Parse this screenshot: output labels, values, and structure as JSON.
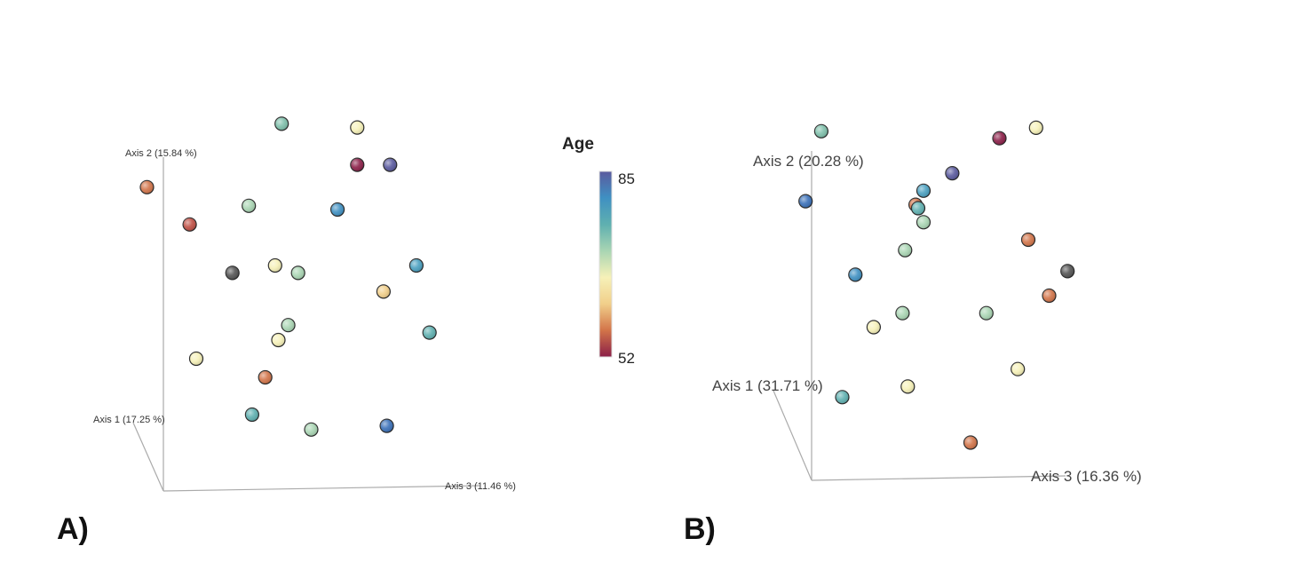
{
  "chart_data": [
    {
      "panel": "A)",
      "type": "scatter",
      "projection": "3d",
      "axes": {
        "axis1": "Axis 1 (17.25 %)",
        "axis2": "Axis 2 (15.84 %)",
        "axis3": "Axis 3 (11.46 %)"
      },
      "color_variable": "Age",
      "points": [
        {
          "axis3": 0.36,
          "axis2": 0.93,
          "axis1": 0.0,
          "color": "#7fc0ab"
        },
        {
          "axis3": 0.59,
          "axis2": 0.92,
          "axis1": 0.0,
          "color": "#f6f1b8"
        },
        {
          "axis3": -0.05,
          "axis2": 0.76,
          "axis1": 0.0,
          "color": "#d27449"
        },
        {
          "axis3": 0.59,
          "axis2": 0.82,
          "axis1": 0.0,
          "color": "#8b1f48"
        },
        {
          "axis3": 0.69,
          "axis2": 0.82,
          "axis1": 0.0,
          "color": "#5a5a9e"
        },
        {
          "axis3": 0.26,
          "axis2": 0.71,
          "axis1": 0.0,
          "color": "#a9d5b3"
        },
        {
          "axis3": 0.53,
          "axis2": 0.7,
          "axis1": 0.0,
          "color": "#3f90c2"
        },
        {
          "axis3": 0.08,
          "axis2": 0.66,
          "axis1": 0.0,
          "color": "#bf4f44"
        },
        {
          "axis3": 0.34,
          "axis2": 0.55,
          "axis1": 0.0,
          "color": "#f6f1b8"
        },
        {
          "axis3": 0.21,
          "axis2": 0.53,
          "axis1": 0.0,
          "color": "#545454"
        },
        {
          "axis3": 0.41,
          "axis2": 0.53,
          "axis1": 0.0,
          "color": "#a9d5b3"
        },
        {
          "axis3": 0.77,
          "axis2": 0.55,
          "axis1": 0.0,
          "color": "#4aa0c0"
        },
        {
          "axis3": 0.67,
          "axis2": 0.48,
          "axis1": 0.0,
          "color": "#f1cf8a"
        },
        {
          "axis3": 0.38,
          "axis2": 0.39,
          "axis1": 0.0,
          "color": "#a9d5b3"
        },
        {
          "axis3": 0.35,
          "axis2": 0.35,
          "axis1": 0.0,
          "color": "#f6f1b8"
        },
        {
          "axis3": 0.81,
          "axis2": 0.37,
          "axis1": 0.0,
          "color": "#5fb0b0"
        },
        {
          "axis3": 0.1,
          "axis2": 0.3,
          "axis1": 0.0,
          "color": "#f6f1b8"
        },
        {
          "axis3": 0.31,
          "axis2": 0.25,
          "axis1": 0.0,
          "color": "#d27449"
        },
        {
          "axis3": 0.27,
          "axis2": 0.15,
          "axis1": 0.0,
          "color": "#5fb0b0"
        },
        {
          "axis3": 0.45,
          "axis2": 0.11,
          "axis1": 0.0,
          "color": "#a9d5b3"
        },
        {
          "axis3": 0.68,
          "axis2": 0.12,
          "axis1": 0.0,
          "color": "#3a70b8"
        }
      ]
    },
    {
      "panel": "B)",
      "type": "scatter",
      "projection": "3d",
      "axes": {
        "axis1": "Axis 1 (31.71 %)",
        "axis2": "Axis 2 (20.28 %)",
        "axis3": "Axis 3 (16.36 %)"
      },
      "color_variable": "Age",
      "points": [
        {
          "axis3": 0.02,
          "axis2": 0.97,
          "axis1": 0.0,
          "color": "#7fc0ab"
        },
        {
          "axis3": 0.84,
          "axis2": 0.98,
          "axis1": 0.0,
          "color": "#f6f1b8"
        },
        {
          "axis3": 0.7,
          "axis2": 0.95,
          "axis1": 0.0,
          "color": "#8b1f48"
        },
        {
          "axis3": 0.52,
          "axis2": 0.85,
          "axis1": 0.0,
          "color": "#5a5a9e"
        },
        {
          "axis3": -0.04,
          "axis2": 0.77,
          "axis1": 0.0,
          "color": "#3a70b8"
        },
        {
          "axis3": 0.41,
          "axis2": 0.8,
          "axis1": 0.0,
          "color": "#4aa0c0"
        },
        {
          "axis3": 0.38,
          "axis2": 0.76,
          "axis1": 0.0,
          "color": "#d27449"
        },
        {
          "axis3": 0.39,
          "axis2": 0.75,
          "axis1": 0.0,
          "color": "#5fb0b0"
        },
        {
          "axis3": 0.41,
          "axis2": 0.71,
          "axis1": 0.0,
          "color": "#a9d5b3"
        },
        {
          "axis3": 0.81,
          "axis2": 0.66,
          "axis1": 0.0,
          "color": "#d27449"
        },
        {
          "axis3": 0.34,
          "axis2": 0.63,
          "axis1": 0.0,
          "color": "#a9d5b3"
        },
        {
          "axis3": 0.15,
          "axis2": 0.56,
          "axis1": 0.0,
          "color": "#3f90c2"
        },
        {
          "axis3": 0.96,
          "axis2": 0.57,
          "axis1": 0.0,
          "color": "#545454"
        },
        {
          "axis3": 0.89,
          "axis2": 0.5,
          "axis1": 0.0,
          "color": "#d27449"
        },
        {
          "axis3": 0.33,
          "axis2": 0.45,
          "axis1": 0.0,
          "color": "#a9d5b3"
        },
        {
          "axis3": 0.65,
          "axis2": 0.45,
          "axis1": 0.0,
          "color": "#a9d5b3"
        },
        {
          "axis3": 0.22,
          "axis2": 0.41,
          "axis1": 0.0,
          "color": "#f6f1b8"
        },
        {
          "axis3": 0.77,
          "axis2": 0.29,
          "axis1": 0.0,
          "color": "#f6f1b8"
        },
        {
          "axis3": 0.35,
          "axis2": 0.24,
          "axis1": 0.0,
          "color": "#f6f1b8"
        },
        {
          "axis3": 0.1,
          "axis2": 0.21,
          "axis1": 0.0,
          "color": "#5fb0b0"
        },
        {
          "axis3": 0.59,
          "axis2": 0.08,
          "axis1": 0.0,
          "color": "#d27449"
        }
      ]
    }
  ],
  "colorbar": {
    "title": "Age",
    "max_label": "85",
    "min_label": "52",
    "max": 85,
    "min": 52,
    "gradient": [
      "#8b1f48",
      "#d27449",
      "#f1cf8a",
      "#f6f1b8",
      "#a9d5b3",
      "#5fb0b0",
      "#3f90c2",
      "#5a5a9e"
    ]
  }
}
